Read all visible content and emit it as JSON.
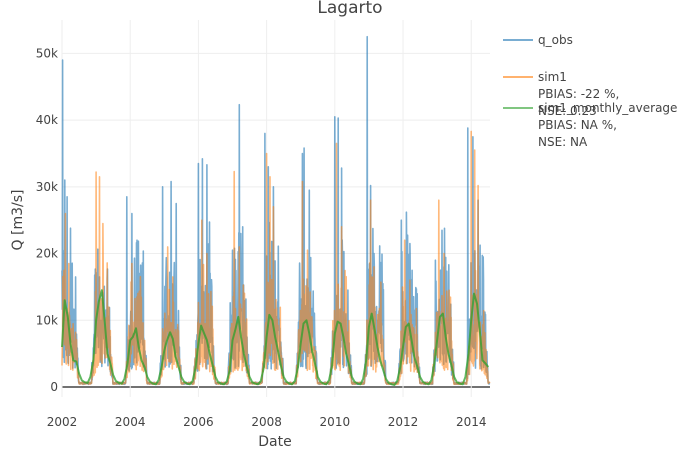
{
  "chart_data": {
    "type": "line",
    "title": "Lagarto",
    "xlabel": "Date",
    "ylabel": "Q [m3/s]",
    "xlim": [
      2002.0,
      2014.55
    ],
    "ylim": [
      -1500,
      55000
    ],
    "x_ticks": [
      2002,
      2004,
      2006,
      2008,
      2010,
      2012,
      2014
    ],
    "x_tick_labels": [
      "2002",
      "2004",
      "2006",
      "2008",
      "2010",
      "2012",
      "2014"
    ],
    "y_ticks": [
      0,
      10000,
      20000,
      30000,
      40000,
      50000
    ],
    "y_tick_labels": [
      "0",
      "10k",
      "20k",
      "30k",
      "40k",
      "50k"
    ],
    "grid": true,
    "legend_position": "top-right-outside",
    "series": [
      {
        "name": "q_obs",
        "color": "#1f77b4",
        "legend_lines": [
          "q_obs"
        ],
        "peaks": [
          {
            "year": 2002,
            "x": [
              2002.02,
              2002.08,
              2002.15,
              2002.25
            ],
            "y": [
              49000,
              31000,
              28500,
              23800
            ]
          },
          {
            "year": 2003,
            "x": [
              2003.1,
              2003.2,
              2003.3
            ],
            "y": [
              16500,
              12000,
              10500
            ]
          },
          {
            "year": 2004,
            "x": [
              2003.9,
              2004.05,
              2004.2
            ],
            "y": [
              28500,
              26000,
              22000
            ]
          },
          {
            "year": 2005,
            "x": [
              2004.95,
              2005.2,
              2005.35
            ],
            "y": [
              30000,
              30800,
              27500
            ]
          },
          {
            "year": 2006,
            "x": [
              2006.0,
              2006.12,
              2006.25
            ],
            "y": [
              33500,
              34200,
              33300
            ]
          },
          {
            "year": 2007,
            "x": [
              2007.0,
              2007.2,
              2007.3
            ],
            "y": [
              20500,
              42300,
              24000
            ]
          },
          {
            "year": 2008,
            "x": [
              2007.95,
              2008.05,
              2008.2
            ],
            "y": [
              38000,
              33000,
              30000
            ]
          },
          {
            "year": 2009,
            "x": [
              2009.05,
              2009.1,
              2009.25
            ],
            "y": [
              35000,
              35800,
              29500
            ]
          },
          {
            "year": 2010,
            "x": [
              2010.0,
              2010.1,
              2010.2
            ],
            "y": [
              40500,
              40300,
              32800
            ]
          },
          {
            "year": 2011,
            "x": [
              2010.95,
              2011.05,
              2011.15
            ],
            "y": [
              52500,
              30200,
              20000
            ]
          },
          {
            "year": 2012,
            "x": [
              2011.95,
              2012.1,
              2012.2
            ],
            "y": [
              25000,
              26200,
              21500
            ]
          },
          {
            "year": 2013,
            "x": [
              2012.95,
              2013.1,
              2013.2
            ],
            "y": [
              19000,
              17500,
              18000
            ]
          },
          {
            "year": 2014,
            "x": [
              2013.9,
              2014.05,
              2014.2,
              2014.35
            ],
            "y": [
              38800,
              37500,
              28000,
              19500
            ]
          }
        ]
      },
      {
        "name": "sim1",
        "color": "#ff7f0e",
        "legend_lines": [
          "sim1",
          "PBIAS: -22 %,",
          "NSE: 0.23"
        ],
        "peaks": [
          {
            "year": 2002,
            "x": [
              2002.1,
              2002.2
            ],
            "y": [
              26000,
              18500
            ]
          },
          {
            "year": 2003,
            "x": [
              2003.0,
              2003.1,
              2003.2
            ],
            "y": [
              32200,
              31500,
              24500
            ]
          },
          {
            "year": 2004,
            "x": [
              2004.05,
              2004.2
            ],
            "y": [
              18500,
              13500
            ]
          },
          {
            "year": 2005,
            "x": [
              2005.1,
              2005.25
            ],
            "y": [
              21000,
              16500
            ]
          },
          {
            "year": 2006,
            "x": [
              2006.1,
              2006.25
            ],
            "y": [
              25000,
              20000
            ]
          },
          {
            "year": 2007,
            "x": [
              2007.05,
              2007.2
            ],
            "y": [
              32300,
              21000
            ]
          },
          {
            "year": 2008,
            "x": [
              2008.0,
              2008.1,
              2008.2
            ],
            "y": [
              35000,
              31500,
              27000
            ]
          },
          {
            "year": 2009,
            "x": [
              2009.05,
              2009.2
            ],
            "y": [
              30800,
              20500
            ]
          },
          {
            "year": 2010,
            "x": [
              2010.05,
              2010.2
            ],
            "y": [
              36500,
              24000
            ]
          },
          {
            "year": 2011,
            "x": [
              2011.05,
              2011.15
            ],
            "y": [
              28000,
              18000
            ]
          },
          {
            "year": 2012,
            "x": [
              2012.05,
              2012.2
            ],
            "y": [
              22000,
              16000
            ]
          },
          {
            "year": 2013,
            "x": [
              2013.05,
              2013.2
            ],
            "y": [
              28000,
              20000
            ]
          },
          {
            "year": 2014,
            "x": [
              2014.0,
              2014.1,
              2014.2
            ],
            "y": [
              38300,
              35500,
              30200
            ]
          }
        ]
      },
      {
        "name": "sim1_monthly_average",
        "color": "#2ca02c",
        "legend_lines": [
          "sim1_monthly_average",
          "PBIAS: NA %,",
          "NSE: NA"
        ],
        "x": [
          2002.0,
          2002.08,
          2002.17,
          2002.25,
          2002.33,
          2002.42,
          2002.5,
          2002.58,
          2002.67,
          2002.75,
          2002.83,
          2002.92,
          2003.0,
          2003.08,
          2003.17,
          2003.25,
          2003.33,
          2003.42,
          2003.5,
          2003.58,
          2003.67,
          2003.75,
          2003.83,
          2003.92,
          2004.0,
          2004.08,
          2004.17,
          2004.25,
          2004.33,
          2004.42,
          2004.5,
          2004.58,
          2004.67,
          2004.75,
          2004.83,
          2004.92,
          2005.0,
          2005.08,
          2005.17,
          2005.25,
          2005.33,
          2005.42,
          2005.5,
          2005.58,
          2005.67,
          2005.75,
          2005.83,
          2005.92,
          2006.0,
          2006.08,
          2006.17,
          2006.25,
          2006.33,
          2006.42,
          2006.5,
          2006.58,
          2006.67,
          2006.75,
          2006.83,
          2006.92,
          2007.0,
          2007.08,
          2007.17,
          2007.25,
          2007.33,
          2007.42,
          2007.5,
          2007.58,
          2007.67,
          2007.75,
          2007.83,
          2007.92,
          2008.0,
          2008.08,
          2008.17,
          2008.25,
          2008.33,
          2008.42,
          2008.5,
          2008.58,
          2008.67,
          2008.75,
          2008.83,
          2008.92,
          2009.0,
          2009.08,
          2009.17,
          2009.25,
          2009.33,
          2009.42,
          2009.5,
          2009.58,
          2009.67,
          2009.75,
          2009.83,
          2009.92,
          2010.0,
          2010.08,
          2010.17,
          2010.25,
          2010.33,
          2010.42,
          2010.5,
          2010.58,
          2010.67,
          2010.75,
          2010.83,
          2010.92,
          2011.0,
          2011.08,
          2011.17,
          2011.25,
          2011.33,
          2011.42,
          2011.5,
          2011.58,
          2011.67,
          2011.75,
          2011.83,
          2011.92,
          2012.0,
          2012.08,
          2012.17,
          2012.25,
          2012.33,
          2012.42,
          2012.5,
          2012.58,
          2012.67,
          2012.75,
          2012.83,
          2012.92,
          2013.0,
          2013.08,
          2013.17,
          2013.25,
          2013.33,
          2013.42,
          2013.5,
          2013.58,
          2013.67,
          2013.75,
          2013.83,
          2013.92,
          2014.0,
          2014.08,
          2014.17,
          2014.25,
          2014.33,
          2014.42,
          2014.5
        ],
        "y": [
          6000,
          13000,
          10500,
          6500,
          4000,
          3800,
          2000,
          1000,
          700,
          600,
          1500,
          4000,
          10000,
          12800,
          14500,
          10000,
          5000,
          3500,
          1800,
          900,
          600,
          500,
          1200,
          3500,
          7000,
          7500,
          8800,
          6000,
          4000,
          3000,
          1500,
          800,
          500,
          400,
          1000,
          3000,
          5500,
          7000,
          8200,
          7200,
          4500,
          3000,
          1500,
          800,
          500,
          400,
          900,
          3000,
          6500,
          9200,
          8000,
          7000,
          5000,
          3200,
          1500,
          700,
          500,
          400,
          800,
          2500,
          7000,
          8500,
          10500,
          7500,
          5000,
          3000,
          1500,
          700,
          500,
          400,
          900,
          3000,
          7500,
          10800,
          10000,
          7500,
          5500,
          3200,
          1500,
          800,
          500,
          400,
          900,
          3000,
          6500,
          9500,
          10000,
          8000,
          5500,
          3500,
          1500,
          800,
          500,
          400,
          1000,
          3200,
          8000,
          9800,
          9500,
          7500,
          5000,
          3200,
          1500,
          800,
          500,
          400,
          1200,
          4000,
          9000,
          11000,
          8500,
          6000,
          4000,
          2500,
          1200,
          600,
          400,
          300,
          900,
          3000,
          6000,
          9000,
          9500,
          7000,
          4500,
          3000,
          1500,
          800,
          500,
          400,
          1000,
          3500,
          7000,
          10500,
          11000,
          7500,
          5000,
          3200,
          1500,
          700,
          500,
          400,
          1500,
          5000,
          10000,
          14000,
          12500,
          8500,
          4000,
          3500,
          3000
        ]
      }
    ]
  }
}
